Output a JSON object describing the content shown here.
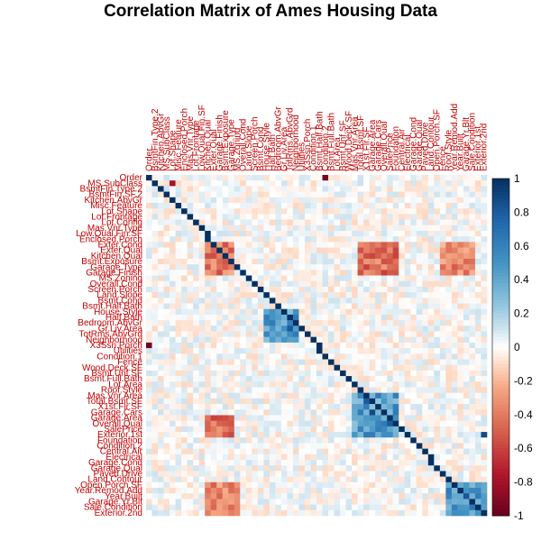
{
  "chart_data": {
    "type": "heatmap",
    "title": "Correlation Matrix of Ames Housing Data",
    "row_labels": [
      "Order",
      "MS.SubClass",
      "BsmtFin.Type.2",
      "BsmtFin.SF.2",
      "Kitchen.AbvGr",
      "Misc.Feature",
      "Lot.Shape",
      "Lot.Frontage",
      "Lot.Config",
      "Mas.Vnr.Type",
      "Low.Qual.Fin.SF",
      "Enclosed.Porch",
      "Exter.Cond",
      "Exter.Qual",
      "Kitchen.Qual",
      "Bsmt.Exposure",
      "Garage.Type",
      "Garage.Finish",
      "MS.Zoning",
      "Overall.Cond",
      "Screen.Porch",
      "Land.Slope",
      "Bsmt.Cond",
      "Bsmt.Half.Bath",
      "House.Style",
      "Half.Bath",
      "Bedroom.AbvGr",
      "Gr.Liv.Area",
      "TotRms.AbvGrd",
      "Neighborhood",
      "X3Ssn.Porch",
      "Utilities",
      "Condition.1",
      "Fence",
      "Wood.Deck.SF",
      "Bsmt.Unf.SF",
      "Bsmt.Full.Bath",
      "Lot.Area",
      "Roof.Style",
      "Mas.Vnr.Area",
      "Total.Bsmt.SF",
      "X1st.Flr.SF",
      "Garage.Cars",
      "Garage.Area",
      "Overall.Qual",
      "SalePrice",
      "Exterior.1st",
      "Foundation",
      "Condition.2",
      "Central.Air",
      "Electrical",
      "Garage.Cond",
      "Garage.Qual",
      "Paved.Drive",
      "Land.Contour",
      "Open.Porch.SF",
      "Year.Remod.Add",
      "Year.Built",
      "Garage.Yr.Blt",
      "Sale.Condition",
      "Exterior.2nd"
    ],
    "column_labels": [
      "Order",
      "BsmtFin.Type.2",
      "Kitchen.AbvGr",
      "MS.SubClass",
      "Lot.Shape",
      "Misc.Feature",
      "Enclosed.Porch",
      "Mas.Vnr.Type",
      "Lot.Frontage",
      "Low.Qual.Fin.SF",
      "Kitchen.Qual",
      "Exter.Qual",
      "Garage.Finish",
      "Bsmt.Exposure",
      "Garage.Type",
      "MS.Zoning",
      "Overall.Cond",
      "Land.Slope",
      "Screen.Porch",
      "Bsmt.Cond",
      "House.Style",
      "Half.Bath",
      "Bedroom.AbvGr",
      "Gr.Liv.Area",
      "TotRms.AbvGrd",
      "Neighborhood",
      "Utilities",
      "X3Ssn.Porch",
      "Condition.1",
      "Bsmt.Half.Bath",
      "Condition.2",
      "Bsmt.Full.Bath",
      "Lot.Area",
      "Bsmt.Unf.SF",
      "Wood.Deck.SF",
      "Mas.Vnr.Area",
      "Total.Bsmt.SF",
      "X1st.Flr.SF",
      "Garage.Area",
      "Garage.Cars",
      "Overall.Qual",
      "SalePrice",
      "Foundation",
      "Central.Air",
      "Electrical",
      "Garage.Cond",
      "Garage.Qual",
      "Paved.Drive",
      "Land.Contour",
      "Open.Porch.SF",
      "Fence",
      "Roof.Style",
      "Year.Remod.Add",
      "Year.Built",
      "Garage.Yr.Blt",
      "Sale.Condition",
      "Exterior.1st",
      "Exterior.2nd"
    ],
    "values_note_strong_pairs": [
      {
        "row": "Exter.Qual",
        "col": "Overall.Qual",
        "value": -0.55
      },
      {
        "row": "Kitchen.Qual",
        "col": "SalePrice",
        "value": -0.5
      },
      {
        "row": "Gr.Liv.Area",
        "col": "TotRms.AbvGrd",
        "value": 0.8
      },
      {
        "row": "Garage.Cars",
        "col": "Garage.Area",
        "value": 0.88
      },
      {
        "row": "Total.Bsmt.SF",
        "col": "X1st.Flr.SF",
        "value": 0.8
      },
      {
        "row": "Year.Built",
        "col": "Garage.Yr.Blt",
        "value": 0.82
      },
      {
        "row": "Exterior.1st",
        "col": "Exterior.2nd",
        "value": 0.88
      },
      {
        "row": "Overall.Qual",
        "col": "SalePrice",
        "value": 0.8
      },
      {
        "row": "MS.SubClass",
        "col": "Lot.Shape",
        "value": -0.8
      },
      {
        "row": "Order",
        "col": "Condition.2",
        "value": -0.95
      },
      {
        "row": "X3Ssn.Porch",
        "col": "Order",
        "value": -0.95
      }
    ],
    "colorbar": {
      "range": [
        -1,
        1
      ],
      "ticks": [
        "1",
        "0.8",
        "0.6",
        "0.4",
        "0.2",
        "0",
        "-0.2",
        "-0.4",
        "-0.6",
        "-0.8",
        "-1"
      ],
      "colors": {
        "negative": "#67001f",
        "neutral": "#ffffff",
        "positive": "#053061"
      }
    },
    "grid": false,
    "legend": "right"
  }
}
